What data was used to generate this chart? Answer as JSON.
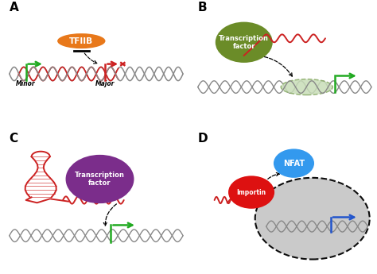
{
  "panel_labels": [
    "A",
    "B",
    "C",
    "D"
  ],
  "panel_label_fontsize": 11,
  "background_color": "#ffffff",
  "arrow_green": "#22aa22",
  "arrow_blue": "#2255cc",
  "arrow_red": "#cc2222",
  "tfiib_color": "#e8781a",
  "tfiib_text": "TFIIB",
  "tf_green_color": "#6b8c28",
  "tf_purple_color": "#7b2d8b",
  "tf_text": "Transcription\nfactor",
  "nfat_color": "#3399ee",
  "nfat_text": "NFAT",
  "importin_color": "#dd1111",
  "importin_text": "Importin",
  "minor_label": "Minor",
  "major_label": "Major",
  "nucleus_fill": "#c8c8c8",
  "decoy_ellipse_color": "#c8ddb8",
  "decoy_ellipse_edge": "#88aa66",
  "dna_gray": "#888888",
  "dna_dark": "#444444",
  "dna_red": "#cc2222"
}
